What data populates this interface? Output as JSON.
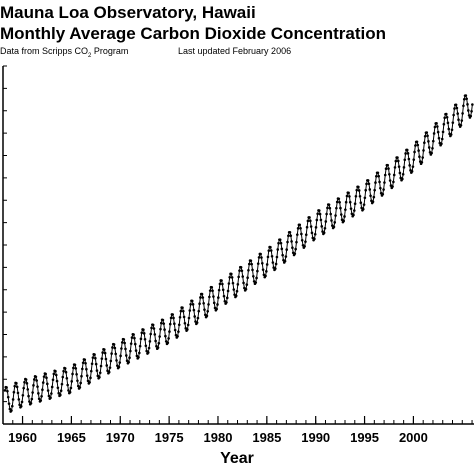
{
  "header": {
    "title_line1": "Mauna Loa Observatory, Hawaii",
    "title_line2": "Monthly Average Carbon Dioxide Concentration",
    "source_prefix": "Data from Scripps CO",
    "source_sub": "2",
    "source_suffix": " Program",
    "updated": "Last updated February 2006"
  },
  "chart_data": {
    "type": "line",
    "title": "Mauna Loa Observatory, Hawaii — Monthly Average Carbon Dioxide Concentration",
    "xlabel": "Year",
    "ylabel": "",
    "xlim": [
      1958,
      2006.2
    ],
    "ylim": [
      310,
      390
    ],
    "x_ticks": [
      1960,
      1965,
      1970,
      1975,
      1980,
      1985,
      1990,
      1995,
      2000
    ],
    "x_tick_labels": [
      "1960",
      "1965",
      "1970",
      "1975",
      "1980",
      "1985",
      "1990",
      "1995",
      "2000"
    ],
    "grid": false,
    "marker": "dot",
    "series": [
      {
        "name": "",
        "trend": {
          "x": [
            1958,
            1960,
            1965,
            1970,
            1975,
            1980,
            1985,
            1990,
            1995,
            2000,
            2006
          ],
          "y": [
            315.0,
            316.9,
            320.0,
            325.7,
            331.1,
            338.7,
            346.1,
            354.4,
            361.0,
            369.5,
            381.9
          ]
        },
        "seasonal_amplitude": 3.0,
        "sampling": "monthly",
        "range_x": [
          1958.2,
          2006.1
        ]
      }
    ]
  }
}
